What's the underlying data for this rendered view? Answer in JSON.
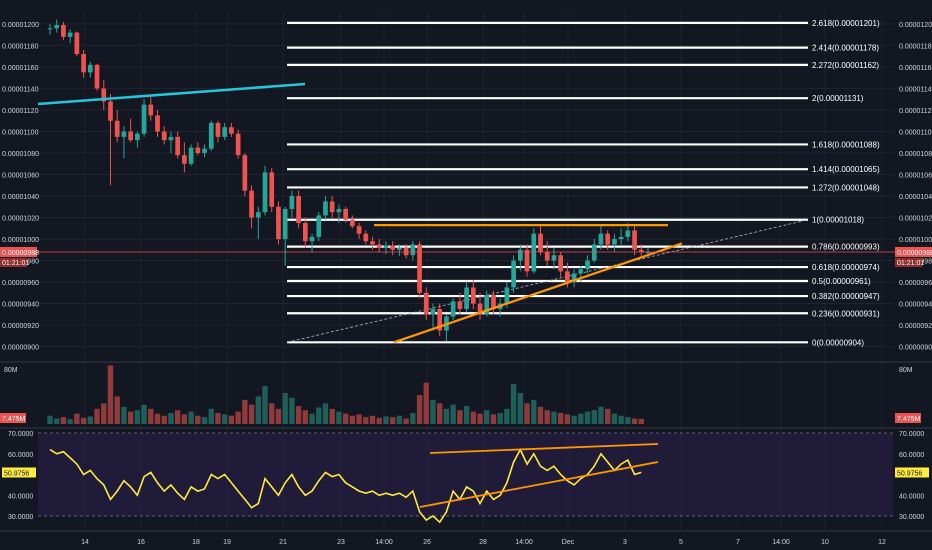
{
  "colors": {
    "background": "#131722",
    "grid": "#2a2e39",
    "axis_text": "#d1d4dc",
    "up": "#26a69a",
    "down": "#ef5350",
    "volume_up": "#1f5f5a",
    "volume_down": "#8f3b3b",
    "fib_line": "#ffffff",
    "trend_cyan": "#26c6da",
    "trend_orange": "#ff9800",
    "rsi_line": "#ffeb3b",
    "rsi_band": "#2b1f4a",
    "price_tag": "#ef5350"
  },
  "price_axis": {
    "ticks": [
      "0.00001200",
      "0.00001180",
      "0.00001160",
      "0.00001140",
      "0.00001120",
      "0.00001100",
      "0.00001080",
      "0.00001060",
      "0.00001040",
      "0.00001020",
      "0.00001000",
      "0.00000980",
      "0.00000960",
      "0.00000940",
      "0.00000920",
      "0.00000900"
    ],
    "current_price": "0.00000988",
    "countdown": "01:21:01"
  },
  "volume_axis": {
    "tick": "80M",
    "current": "7.475M"
  },
  "rsi_axis": {
    "ticks": [
      "70.0000",
      "60.0000",
      "40.0000",
      "30.0000"
    ],
    "current": "50.9756"
  },
  "time_axis": {
    "labels": [
      "14",
      "16",
      "18",
      "19",
      "21",
      "23",
      "14:00",
      "26",
      "28",
      "14:00",
      "Dec",
      "3",
      "5",
      "7",
      "14:00",
      "10",
      "12"
    ]
  },
  "fib_levels": [
    {
      "label": "2.618(0.00001201)",
      "price": 1.201e-05
    },
    {
      "label": "2.414(0.00001178)",
      "price": 1.178e-05
    },
    {
      "label": "2.272(0.00001162)",
      "price": 1.162e-05
    },
    {
      "label": "2(0.00001131)",
      "price": 1.131e-05
    },
    {
      "label": "1.618(0.00001088)",
      "price": 1.088e-05
    },
    {
      "label": "1.414(0.00001065)",
      "price": 1.065e-05
    },
    {
      "label": "1.272(0.00001048)",
      "price": 1.048e-05
    },
    {
      "label": "1(0.00001018)",
      "price": 1.018e-05
    },
    {
      "label": "0.786(0.00000993)",
      "price": 9.93e-06
    },
    {
      "label": "0.618(0.00000974)",
      "price": 9.74e-06
    },
    {
      "label": "0.5(0.00000961)",
      "price": 9.61e-06
    },
    {
      "label": "0.382(0.00000947)",
      "price": 9.47e-06
    },
    {
      "label": "0.236(0.00000931)",
      "price": 9.31e-06
    },
    {
      "label": "0(0.00000904)",
      "price": 9.04e-06
    }
  ],
  "chart_data": {
    "type": "candlestick",
    "price_range": [
      8.95e-06,
      1.213e-05
    ],
    "candles": [
      [
        1.195e-05,
        1.2e-05,
        1.19e-05,
        1.196e-05
      ],
      [
        1.196e-05,
        1.204e-05,
        1.192e-05,
        1.199e-05
      ],
      [
        1.199e-05,
        1.202e-05,
        1.185e-05,
        1.188e-05
      ],
      [
        1.188e-05,
        1.195e-05,
        1.182e-05,
        1.192e-05
      ],
      [
        1.192e-05,
        1.193e-05,
        1.17e-05,
        1.172e-05
      ],
      [
        1.172e-05,
        1.176e-05,
        1.15e-05,
        1.155e-05
      ],
      [
        1.155e-05,
        1.165e-05,
        1.15e-05,
        1.162e-05
      ],
      [
        1.162e-05,
        1.163e-05,
        1.138e-05,
        1.14e-05
      ],
      [
        1.14e-05,
        1.148e-05,
        1.12e-05,
        1.128e-05
      ],
      [
        1.128e-05,
        1.135e-05,
        1.05e-05,
        1.11e-05
      ],
      [
        1.11e-05,
        1.12e-05,
        1.09e-05,
        1.095e-05
      ],
      [
        1.095e-05,
        1.105e-05,
        1.075e-05,
        1.1e-05
      ],
      [
        1.1e-05,
        1.112e-05,
        1.09e-05,
        1.092e-05
      ],
      [
        1.092e-05,
        1.1e-05,
        1.085e-05,
        1.098e-05
      ],
      [
        1.098e-05,
        1.13e-05,
        1.095e-05,
        1.125e-05
      ],
      [
        1.125e-05,
        1.132e-05,
        1.11e-05,
        1.115e-05
      ],
      [
        1.115e-05,
        1.12e-05,
        1.095e-05,
        1.1e-05
      ],
      [
        1.1e-05,
        1.105e-05,
        1.088e-05,
        1.092e-05
      ],
      [
        1.092e-05,
        1.1e-05,
        1.08e-05,
        1.095e-05
      ],
      [
        1.095e-05,
        1.1e-05,
        1.075e-05,
        1.078e-05
      ],
      [
        1.078e-05,
        1.09e-05,
        1.062e-05,
        1.07e-05
      ],
      [
        1.07e-05,
        1.088e-05,
        1.068e-05,
        1.085e-05
      ],
      [
        1.085e-05,
        1.09e-05,
        1.078e-05,
        1.08e-05
      ],
      [
        1.08e-05,
        1.088e-05,
        1.076e-05,
        1.084e-05
      ],
      [
        1.084e-05,
        1.11e-05,
        1.082e-05,
        1.108e-05
      ],
      [
        1.108e-05,
        1.11e-05,
        1.09e-05,
        1.095e-05
      ],
      [
        1.095e-05,
        1.108e-05,
        1.092e-05,
        1.104e-05
      ],
      [
        1.104e-05,
        1.108e-05,
        1.095e-05,
        1.098e-05
      ],
      [
        1.098e-05,
        1.102e-05,
        1.075e-05,
        1.078e-05
      ],
      [
        1.078e-05,
        1.08e-05,
        1.04e-05,
        1.045e-05
      ],
      [
        1.045e-05,
        1.05e-05,
        1.01e-05,
        1.02e-05
      ],
      [
        1.02e-05,
        1.03e-05,
        1e-05,
        1.025e-05
      ],
      [
        1.025e-05,
        1.068e-05,
        1.022e-05,
        1.062e-05
      ],
      [
        1.062e-05,
        1.066e-05,
        1.025e-05,
        1.03e-05
      ],
      [
        1.03e-05,
        1.035e-05,
        9.95e-06,
        1e-05
      ],
      [
        1e-05,
        1.03e-05,
        9.75e-06,
        1.028e-05
      ],
      [
        1.028e-05,
        1.045e-05,
        1.02e-05,
        1.04e-05
      ],
      [
        1.04e-05,
        1.045e-05,
        1.01e-05,
        1.015e-05
      ],
      [
        1.015e-05,
        1.02e-05,
        9.92e-06,
        9.98e-06
      ],
      [
        9.98e-06,
        1.005e-05,
        9.88e-06,
        1.002e-05
      ],
      [
        1.002e-05,
        1.025e-05,
        9.98e-06,
        1.022e-05
      ],
      [
        1.022e-05,
        1.04e-05,
        1.018e-05,
        1.035e-05
      ],
      [
        1.035e-05,
        1.04e-05,
        1.02e-05,
        1.025e-05
      ],
      [
        1.025e-05,
        1.032e-05,
        1.015e-05,
        1.028e-05
      ],
      [
        1.028e-05,
        1.03e-05,
        1.015e-05,
        1.018e-05
      ],
      [
        1.018e-05,
        1.022e-05,
        1.01e-05,
        1.012e-05
      ],
      [
        1.012e-05,
        1.015e-05,
        1e-05,
        1.005e-05
      ],
      [
        1.005e-05,
        1.008e-05,
        9.95e-06,
        9.98e-06
      ],
      [
        9.98e-06,
        1.002e-05,
        9.9e-06,
        9.95e-06
      ],
      [
        9.95e-06,
        1e-05,
        9.88e-06,
        9.92e-06
      ],
      [
        9.92e-06,
        9.98e-06,
        9.86e-06,
        9.94e-06
      ],
      [
        9.94e-06,
        9.98e-06,
        9.85e-06,
        9.9e-06
      ],
      [
        9.9e-06,
        9.95e-06,
        9.84e-06,
        9.92e-06
      ],
      [
        9.92e-06,
        9.95e-06,
        9.82e-06,
        9.85e-06
      ],
      [
        9.85e-06,
        9.98e-06,
        9.8e-06,
        9.95e-06
      ],
      [
        9.95e-06,
        9.98e-06,
        9.45e-06,
        9.5e-06
      ],
      [
        9.5e-06,
        9.55e-06,
        9.25e-06,
        9.3e-06
      ],
      [
        9.3e-06,
        9.4e-06,
        9.15e-06,
        9.35e-06
      ],
      [
        9.35e-06,
        9.4e-06,
        9.1e-06,
        9.15e-06
      ],
      [
        9.15e-06,
        9.3e-06,
        9.05e-06,
        9.28e-06
      ],
      [
        9.28e-06,
        9.45e-06,
        9.25e-06,
        9.42e-06
      ],
      [
        9.42e-06,
        9.5e-06,
        9.3e-06,
        9.35e-06
      ],
      [
        9.35e-06,
        9.6e-06,
        9.32e-06,
        9.55e-06
      ],
      [
        9.55e-06,
        9.62e-06,
        9.35e-06,
        9.4e-06
      ],
      [
        9.4e-06,
        9.5e-06,
        9.25e-06,
        9.3e-06
      ],
      [
        9.3e-06,
        9.52e-06,
        9.28e-06,
        9.48e-06
      ],
      [
        9.48e-06,
        9.52e-06,
        9.3e-06,
        9.35e-06
      ],
      [
        9.35e-06,
        9.45e-06,
        9.28e-06,
        9.4e-06
      ],
      [
        9.4e-06,
        9.6e-06,
        9.36e-06,
        9.55e-06
      ],
      [
        9.55e-06,
        9.85e-06,
        9.5e-06,
        9.8e-06
      ],
      [
        9.8e-06,
        9.95e-06,
        9.7e-06,
        9.9e-06
      ],
      [
        9.9e-06,
        9.95e-06,
        9.65e-06,
        9.7e-06
      ],
      [
        9.7e-06,
        1.01e-05,
        9.68e-06,
        1.005e-05
      ],
      [
        1.005e-05,
        1.012e-05,
        9.85e-06,
        9.88e-06
      ],
      [
        9.88e-06,
        9.98e-06,
        9.75e-06,
        9.8e-06
      ],
      [
        9.8e-06,
        9.92e-06,
        9.72e-06,
        9.85e-06
      ],
      [
        9.85e-06,
        9.88e-06,
        9.65e-06,
        9.7e-06
      ],
      [
        9.7e-06,
        9.78e-06,
        9.55e-06,
        9.6e-06
      ],
      [
        9.6e-06,
        9.72e-06,
        9.55e-06,
        9.68e-06
      ],
      [
        9.68e-06,
        9.75e-06,
        9.6e-06,
        9.72e-06
      ],
      [
        9.72e-06,
        9.85e-06,
        9.68e-06,
        9.8e-06
      ],
      [
        9.8e-06,
        1e-05,
        9.78e-06,
        9.95e-06
      ],
      [
        9.95e-06,
        1.012e-05,
        9.9e-06,
        1.005e-05
      ],
      [
        1.005e-05,
        1.008e-05,
        9.9e-06,
        9.95e-06
      ],
      [
        9.95e-06,
        1.005e-05,
        9.88e-06,
        1e-05
      ],
      [
        1e-05,
        1.01e-05,
        9.95e-06,
        1.002e-05
      ],
      [
        1.002e-05,
        1.015e-05,
        9.98e-06,
        1.008e-05
      ],
      [
        1.008e-05,
        1.012e-05,
        9.85e-06,
        9.9e-06
      ],
      [
        9.9e-06,
        9.95e-06,
        9.82e-06,
        9.88e-06
      ],
      [
        9.88e-06,
        9.92e-06,
        9.84e-06,
        9.88e-06
      ]
    ],
    "volume_million": [
      12,
      8,
      10,
      7,
      15,
      9,
      11,
      22,
      30,
      85,
      40,
      25,
      18,
      20,
      28,
      22,
      15,
      12,
      16,
      20,
      14,
      18,
      12,
      10,
      22,
      16,
      14,
      12,
      18,
      35,
      28,
      40,
      55,
      30,
      22,
      45,
      38,
      26,
      20,
      15,
      24,
      30,
      22,
      18,
      15,
      12,
      14,
      10,
      12,
      9,
      11,
      10,
      12,
      8,
      16,
      42,
      60,
      35,
      30,
      22,
      28,
      20,
      26,
      18,
      15,
      20,
      14,
      16,
      22,
      58,
      45,
      30,
      35,
      25,
      20,
      18,
      16,
      14,
      12,
      15,
      18,
      20,
      25,
      22,
      15,
      12,
      10,
      8,
      7.475
    ],
    "rsi": [
      62,
      60,
      61,
      58,
      55,
      50,
      52,
      48,
      45,
      38,
      42,
      47,
      44,
      40,
      49,
      51,
      46,
      42,
      45,
      41,
      38,
      44,
      42,
      43,
      50,
      48,
      50,
      46,
      42,
      38,
      34,
      36,
      48,
      44,
      40,
      46,
      50,
      44,
      40,
      42,
      47,
      51,
      49,
      50,
      46,
      44,
      42,
      41,
      42,
      40,
      41,
      40,
      41,
      39,
      42,
      32,
      28,
      30,
      27,
      32,
      42,
      38,
      44,
      42,
      36,
      42,
      38,
      40,
      46,
      56,
      62,
      55,
      60,
      54,
      52,
      54,
      50,
      47,
      45,
      48,
      50,
      54,
      60,
      56,
      52,
      55,
      57,
      50,
      51
    ]
  }
}
